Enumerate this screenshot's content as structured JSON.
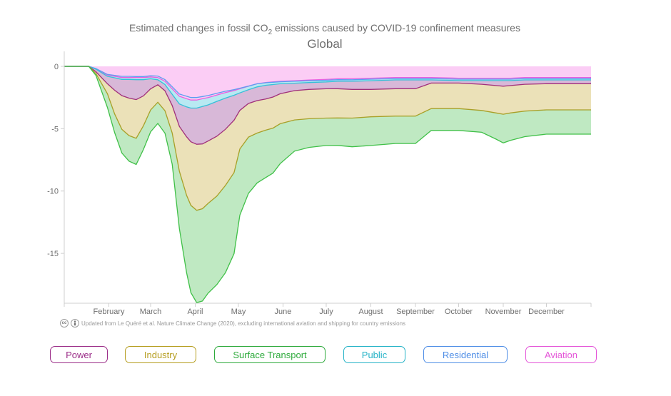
{
  "chart_data": {
    "type": "area",
    "title_prefix": "Estimated changes in fossil CO",
    "title_sub": "2",
    "title_suffix": " emissions caused by COVID-19 confinement measures",
    "subtitle": "Global",
    "ylabel": "",
    "xlabel": "",
    "ylim": [
      -19,
      1.2
    ],
    "yticks": [
      0,
      -5,
      -10,
      -15
    ],
    "ytick_labels": [
      "0",
      "-5",
      "-10",
      "-15"
    ],
    "x_range": [
      0,
      366
    ],
    "months": [
      {
        "label": "February",
        "day": 31
      },
      {
        "label": "March",
        "day": 60
      },
      {
        "label": "April",
        "day": 91
      },
      {
        "label": "May",
        "day": 121
      },
      {
        "label": "June",
        "day": 152
      },
      {
        "label": "July",
        "day": 182
      },
      {
        "label": "August",
        "day": 213
      },
      {
        "label": "September",
        "day": 244
      },
      {
        "label": "October",
        "day": 274
      },
      {
        "label": "November",
        "day": 305
      },
      {
        "label": "December",
        "day": 335
      }
    ],
    "x_days": [
      0,
      10,
      17,
      22,
      30,
      35,
      40,
      45,
      50,
      55,
      60,
      65,
      70,
      75,
      80,
      85,
      88,
      92,
      96,
      100,
      106,
      112,
      118,
      122,
      128,
      134,
      140,
      145,
      150,
      160,
      170,
      182,
      190,
      200,
      213,
      230,
      244,
      255,
      274,
      290,
      300,
      305,
      310,
      320,
      335,
      350,
      366
    ],
    "series": [
      {
        "name": "Aviation",
        "color": "#e860e0",
        "fill": "#fbcdf5",
        "values": [
          0,
          0,
          0,
          -0.2,
          -0.7,
          -0.8,
          -0.9,
          -0.9,
          -0.9,
          -0.9,
          -0.85,
          -0.9,
          -1.2,
          -1.8,
          -2.4,
          -2.6,
          -2.7,
          -2.7,
          -2.6,
          -2.5,
          -2.3,
          -2.1,
          -1.95,
          -1.8,
          -1.6,
          -1.4,
          -1.3,
          -1.25,
          -1.2,
          -1.15,
          -1.1,
          -1.05,
          -1.0,
          -1.0,
          -0.95,
          -0.9,
          -0.9,
          -0.9,
          -0.95,
          -0.95,
          -0.95,
          -0.95,
          -0.95,
          -0.9,
          -0.9,
          -0.9,
          -0.9
        ]
      },
      {
        "name": "Residential",
        "color": "#5b9ef0",
        "fill": "#dbe8fb",
        "values": [
          0,
          0,
          0,
          0.02,
          0.05,
          0.08,
          0.1,
          0.1,
          0.08,
          0.08,
          0.1,
          0.12,
          0.14,
          0.16,
          0.18,
          0.2,
          0.2,
          0.2,
          0.18,
          0.16,
          0.14,
          0.1,
          0.08,
          0.05,
          0.02,
          0.0,
          -0.02,
          -0.03,
          -0.04,
          -0.05,
          -0.06,
          -0.07,
          -0.07,
          -0.08,
          -0.08,
          -0.08,
          -0.08,
          -0.08,
          -0.08,
          -0.08,
          -0.08,
          -0.08,
          -0.08,
          -0.08,
          -0.08,
          -0.08,
          -0.08
        ]
      },
      {
        "name": "Public",
        "color": "#35c0d8",
        "fill": "#b8e9f2",
        "values": [
          0,
          0,
          0,
          -0.05,
          -0.15,
          -0.2,
          -0.25,
          -0.25,
          -0.25,
          -0.25,
          -0.25,
          -0.3,
          -0.4,
          -0.6,
          -0.8,
          -0.85,
          -0.85,
          -0.85,
          -0.8,
          -0.75,
          -0.65,
          -0.55,
          -0.45,
          -0.38,
          -0.3,
          -0.25,
          -0.2,
          -0.18,
          -0.16,
          -0.15,
          -0.14,
          -0.13,
          -0.12,
          -0.12,
          -0.12,
          -0.11,
          -0.11,
          -0.11,
          -0.11,
          -0.11,
          -0.11,
          -0.11,
          -0.11,
          -0.11,
          -0.11,
          -0.11,
          -0.11
        ]
      },
      {
        "name": "Power",
        "color": "#a0307a",
        "fill": "#d8b8d8",
        "values": [
          0,
          0,
          0,
          -0.2,
          -0.6,
          -1.0,
          -1.3,
          -1.5,
          -1.6,
          -1.3,
          -0.8,
          -0.4,
          -0.5,
          -0.9,
          -1.8,
          -2.4,
          -2.7,
          -2.9,
          -3.0,
          -2.9,
          -2.8,
          -2.5,
          -2.0,
          -1.4,
          -1.1,
          -1.1,
          -1.1,
          -1.0,
          -0.8,
          -0.6,
          -0.55,
          -0.55,
          -0.6,
          -0.65,
          -0.7,
          -0.7,
          -0.7,
          -0.25,
          -0.2,
          -0.3,
          -0.4,
          -0.45,
          -0.4,
          -0.35,
          -0.3,
          -0.3,
          -0.3
        ]
      },
      {
        "name": "Industry",
        "color": "#a8a028",
        "fill": "#ebe1b8",
        "values": [
          0,
          0,
          0,
          -0.15,
          -0.8,
          -1.9,
          -2.7,
          -3.0,
          -3.1,
          -2.4,
          -1.7,
          -1.4,
          -1.6,
          -2.2,
          -3.6,
          -4.7,
          -5.1,
          -5.3,
          -5.2,
          -5.0,
          -4.8,
          -4.5,
          -4.2,
          -3.1,
          -2.7,
          -2.6,
          -2.5,
          -2.5,
          -2.4,
          -2.35,
          -2.35,
          -2.35,
          -2.35,
          -2.3,
          -2.2,
          -2.2,
          -2.2,
          -2.05,
          -2.05,
          -2.1,
          -2.2,
          -2.25,
          -2.2,
          -2.15,
          -2.1,
          -2.1,
          -2.1
        ]
      },
      {
        "name": "Surface Transport",
        "color": "#40c048",
        "fill": "#bfe9c2",
        "values": [
          0,
          0,
          0,
          -0.15,
          -1.1,
          -1.5,
          -1.9,
          -2.05,
          -2.1,
          -1.9,
          -1.75,
          -1.7,
          -1.8,
          -2.5,
          -4.6,
          -6.2,
          -7.0,
          -7.4,
          -7.4,
          -7.2,
          -7.1,
          -7.0,
          -6.5,
          -5.3,
          -4.5,
          -4.0,
          -3.8,
          -3.6,
          -3.2,
          -2.5,
          -2.3,
          -2.2,
          -2.2,
          -2.3,
          -2.3,
          -2.2,
          -2.2,
          -1.75,
          -1.75,
          -1.75,
          -2.1,
          -2.3,
          -2.2,
          -2.05,
          -1.95,
          -1.95,
          -1.95
        ]
      }
    ],
    "legend_order": [
      "Power",
      "Industry",
      "Surface Transport",
      "Public",
      "Residential",
      "Aviation"
    ]
  },
  "footnote": {
    "cc_icon": "cc-icon",
    "by_icon": "by-icon",
    "text": "Updated from Le Quéré et al. Nature Climate Change (2020), excluding international aviation and shipping for country emissions"
  },
  "legend": [
    {
      "label": "Power",
      "color": "#9b2d88"
    },
    {
      "label": "Industry",
      "color": "#b59d1e"
    },
    {
      "label": "Surface Transport",
      "color": "#2eaa3c"
    },
    {
      "label": "Public",
      "color": "#25b3c7"
    },
    {
      "label": "Residential",
      "color": "#4f8ee6"
    },
    {
      "label": "Aviation",
      "color": "#e455d8"
    }
  ]
}
